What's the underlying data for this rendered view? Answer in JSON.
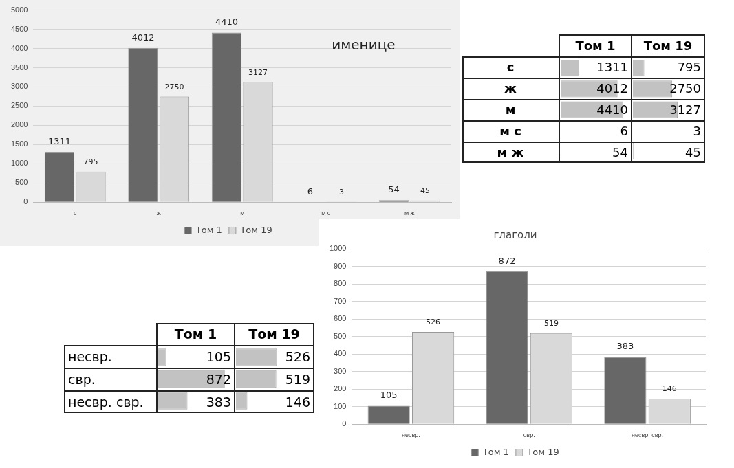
{
  "chart_data": [
    {
      "type": "bar",
      "title": "именице",
      "categories": [
        "с",
        "ж",
        "м",
        "м с",
        "м ж"
      ],
      "series": [
        {
          "name": "Том 1",
          "color": "#676767",
          "values": [
            1311,
            4012,
            4410,
            6,
            54
          ]
        },
        {
          "name": "Том 19",
          "color": "#d9d9d9",
          "values": [
            795,
            2750,
            3127,
            3,
            45
          ]
        }
      ],
      "ylim": [
        0,
        5000
      ],
      "yticks": [
        0,
        500,
        1000,
        1500,
        2000,
        2500,
        3000,
        3500,
        4000,
        4500,
        5000
      ],
      "grid": "y",
      "legend": "bottom",
      "data_labels": true
    },
    {
      "type": "bar",
      "orientation": "horizontal",
      "categories": [
        "с",
        "ж",
        "м",
        "м с",
        "м ж"
      ],
      "series": [
        {
          "name": "Том 1",
          "color": "#c2c2c2",
          "values": [
            1311,
            4012,
            4410,
            6,
            54
          ]
        }
      ],
      "data_labels": true
    },
    {
      "type": "bar",
      "orientation": "horizontal",
      "categories": [
        null,
        null,
        null,
        null,
        null
      ],
      "series": [
        {
          "name": "Том 19",
          "color": "#c2c2c2",
          "values": [
            795,
            2750,
            3127,
            3,
            45
          ]
        }
      ],
      "data_labels": true
    },
    {
      "type": "bar",
      "orientation": "horizontal",
      "categories": [
        "несвр.",
        "свр.",
        "несвр. свр."
      ],
      "series": [
        {
          "name": "Том 1",
          "color": "#c2c2c2",
          "values": [
            105,
            872,
            383
          ]
        }
      ],
      "data_labels": true
    },
    {
      "type": "bar",
      "orientation": "horizontal",
      "categories": [
        null,
        null,
        null
      ],
      "series": [
        {
          "name": "Том 19",
          "color": "#c2c2c2",
          "values": [
            526,
            519,
            146
          ]
        }
      ],
      "data_labels": true
    },
    {
      "type": "bar",
      "title": "глаголи",
      "categories": [
        "несвр.",
        "свр.",
        "несвр. свр."
      ],
      "series": [
        {
          "name": "Том 1",
          "color": "#676767",
          "values": [
            105,
            872,
            383
          ]
        },
        {
          "name": "Том 19",
          "color": "#d9d9d9",
          "values": [
            526,
            519,
            146
          ]
        }
      ],
      "ylim": [
        0,
        1000
      ],
      "yticks": [
        0,
        100,
        200,
        300,
        400,
        500,
        600,
        700,
        800,
        900,
        1000
      ],
      "grid": "y",
      "legend": "bottom",
      "data_labels": true
    }
  ]
}
